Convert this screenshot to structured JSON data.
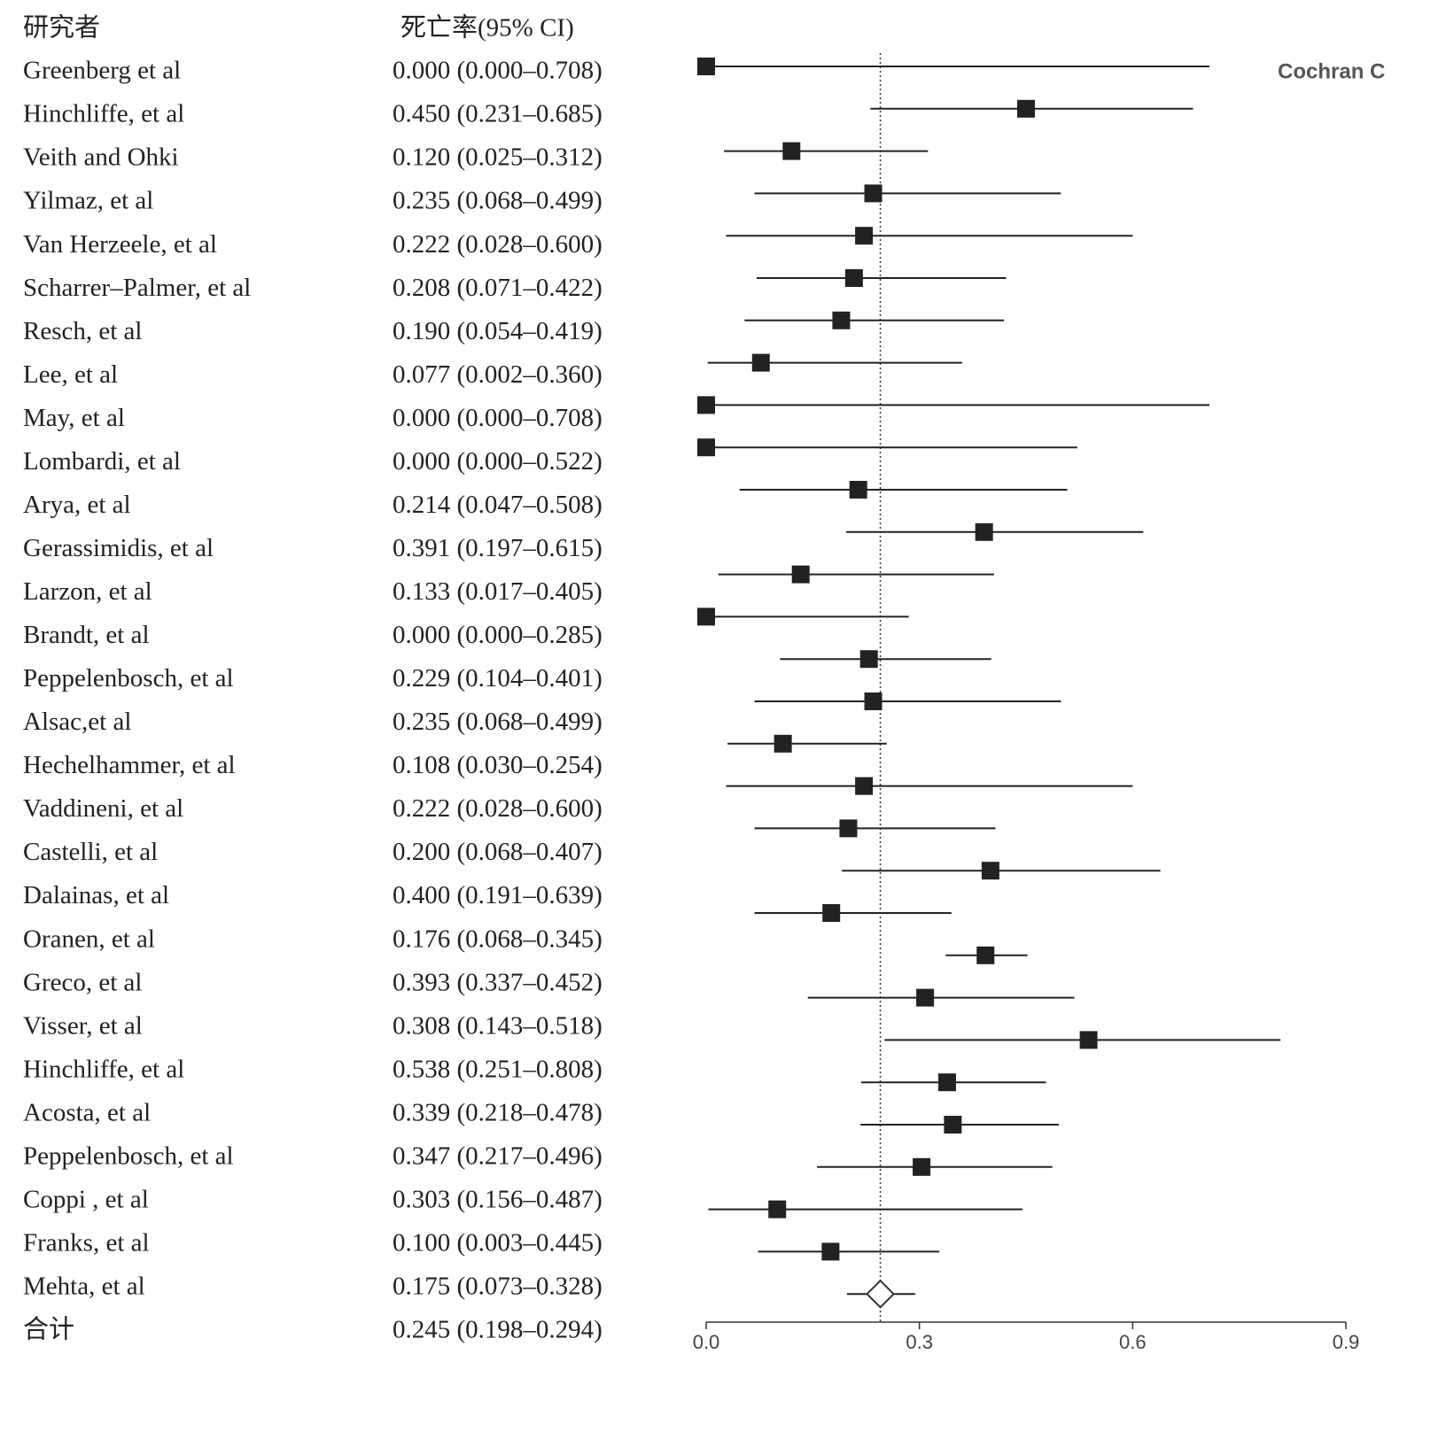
{
  "header": {
    "study": "研究者",
    "estimate": "死亡率(95% CI)"
  },
  "chart_data": {
    "type": "forest",
    "color": "#222222",
    "watermark": "Cochran C",
    "xlim": [
      0,
      0.9
    ],
    "xticks": [
      {
        "value": 0,
        "label": "0.0"
      },
      0.3,
      0.6,
      0.9
    ],
    "rows": [
      {
        "study": "Greenberg et al",
        "label": "0.000 (0.000–0.708)",
        "estimate": 0.0,
        "lower": 0.0,
        "upper": 0.708
      },
      {
        "study": "Hinchliffe, et al",
        "label": "0.450 (0.231–0.685)",
        "estimate": 0.45,
        "lower": 0.231,
        "upper": 0.685
      },
      {
        "study": "Veith and Ohki",
        "label": "0.120 (0.025–0.312)",
        "estimate": 0.12,
        "lower": 0.025,
        "upper": 0.312
      },
      {
        "study": "Yilmaz, et al",
        "label": "0.235 (0.068–0.499)",
        "estimate": 0.235,
        "lower": 0.068,
        "upper": 0.499
      },
      {
        "study": "Van Herzeele, et al",
        "label": "0.222 (0.028–0.600)",
        "estimate": 0.222,
        "lower": 0.028,
        "upper": 0.6
      },
      {
        "study": "Scharrer–Palmer, et al",
        "label": "0.208 (0.071–0.422)",
        "estimate": 0.208,
        "lower": 0.071,
        "upper": 0.422
      },
      {
        "study": "Resch, et al",
        "label": "0.190 (0.054–0.419)",
        "estimate": 0.19,
        "lower": 0.054,
        "upper": 0.419
      },
      {
        "study": "Lee, et al",
        "label": "0.077 (0.002–0.360)",
        "estimate": 0.077,
        "lower": 0.002,
        "upper": 0.36
      },
      {
        "study": "May, et al",
        "label": "0.000 (0.000–0.708)",
        "estimate": 0.0,
        "lower": 0.0,
        "upper": 0.708
      },
      {
        "study": "Lombardi, et al",
        "label": "0.000 (0.000–0.522)",
        "estimate": 0.0,
        "lower": 0.0,
        "upper": 0.522
      },
      {
        "study": "Arya, et al",
        "label": "0.214 (0.047–0.508)",
        "estimate": 0.214,
        "lower": 0.047,
        "upper": 0.508
      },
      {
        "study": "Gerassimidis, et al",
        "label": "0.391 (0.197–0.615)",
        "estimate": 0.391,
        "lower": 0.197,
        "upper": 0.615
      },
      {
        "study": "Larzon, et al",
        "label": "0.133 (0.017–0.405)",
        "estimate": 0.133,
        "lower": 0.017,
        "upper": 0.405
      },
      {
        "study": "Brandt, et al",
        "label": "0.000 (0.000–0.285)",
        "estimate": 0.0,
        "lower": 0.0,
        "upper": 0.285
      },
      {
        "study": "Peppelenbosch, et al",
        "label": "0.229 (0.104–0.401)",
        "estimate": 0.229,
        "lower": 0.104,
        "upper": 0.401
      },
      {
        "study": "Alsac,et al",
        "label": "0.235 (0.068–0.499)",
        "estimate": 0.235,
        "lower": 0.068,
        "upper": 0.499
      },
      {
        "study": "Hechelhammer, et al",
        "label": "0.108 (0.030–0.254)",
        "estimate": 0.108,
        "lower": 0.03,
        "upper": 0.254
      },
      {
        "study": "Vaddineni, et al",
        "label": "0.222 (0.028–0.600)",
        "estimate": 0.222,
        "lower": 0.028,
        "upper": 0.6
      },
      {
        "study": "Castelli, et al",
        "label": "0.200 (0.068–0.407)",
        "estimate": 0.2,
        "lower": 0.068,
        "upper": 0.407
      },
      {
        "study": "Dalainas, et al",
        "label": "0.400 (0.191–0.639)",
        "estimate": 0.4,
        "lower": 0.191,
        "upper": 0.639
      },
      {
        "study": "Oranen, et al",
        "label": "0.176 (0.068–0.345)",
        "estimate": 0.176,
        "lower": 0.068,
        "upper": 0.345
      },
      {
        "study": "Greco, et al",
        "label": "0.393 (0.337–0.452)",
        "estimate": 0.393,
        "lower": 0.337,
        "upper": 0.452
      },
      {
        "study": "Visser, et al",
        "label": "0.308 (0.143–0.518)",
        "estimate": 0.308,
        "lower": 0.143,
        "upper": 0.518
      },
      {
        "study": "Hinchliffe, et al",
        "label": "0.538 (0.251–0.808)",
        "estimate": 0.538,
        "lower": 0.251,
        "upper": 0.808
      },
      {
        "study": "Acosta, et al",
        "label": "0.339 (0.218–0.478)",
        "estimate": 0.339,
        "lower": 0.218,
        "upper": 0.478
      },
      {
        "study": "Peppelenbosch, et al",
        "label": "0.347 (0.217–0.496)",
        "estimate": 0.347,
        "lower": 0.217,
        "upper": 0.496
      },
      {
        "study": "Coppi , et al",
        "label": "0.303 (0.156–0.487)",
        "estimate": 0.303,
        "lower": 0.156,
        "upper": 0.487
      },
      {
        "study": "Franks, et al",
        "label": "0.100 (0.003–0.445)",
        "estimate": 0.1,
        "lower": 0.003,
        "upper": 0.445
      },
      {
        "study": "Mehta, et al",
        "label": "0.175 (0.073–0.328)",
        "estimate": 0.175,
        "lower": 0.073,
        "upper": 0.328
      }
    ],
    "total": {
      "study": "合计",
      "label": "0.245 (0.198–0.294)",
      "estimate": 0.245,
      "lower": 0.198,
      "upper": 0.294
    }
  }
}
